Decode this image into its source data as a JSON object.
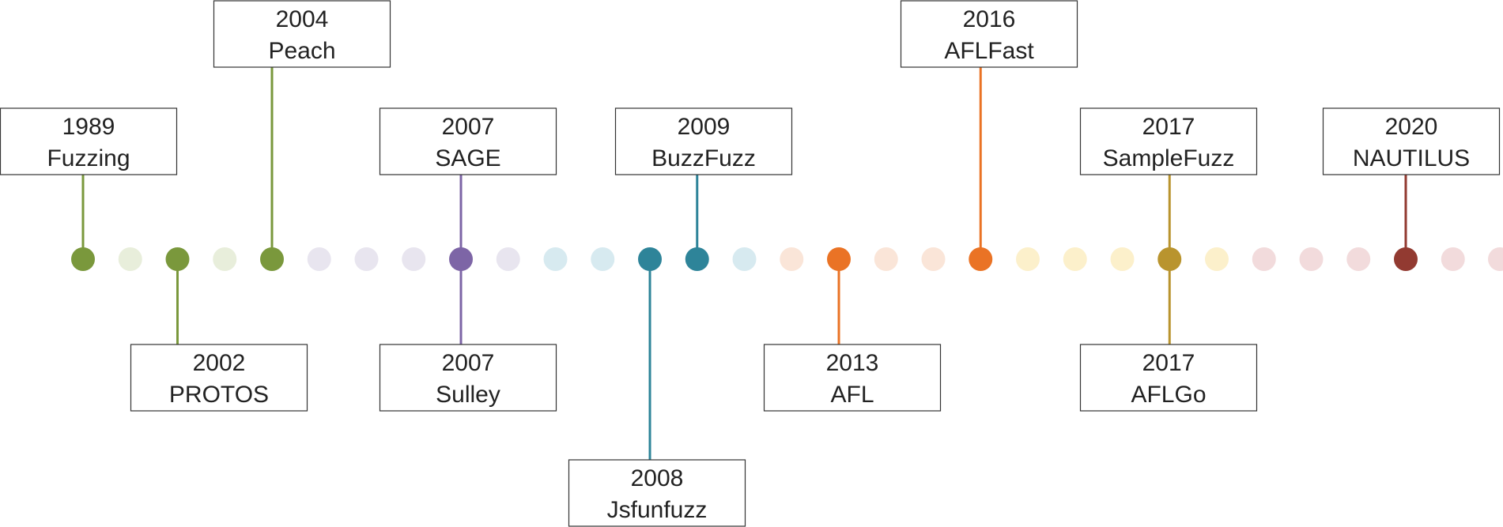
{
  "timeline": {
    "events": [
      {
        "year": "1989",
        "name": "Fuzzing",
        "color": "#7A983C"
      },
      {
        "year": "2002",
        "name": "PROTOS",
        "color": "#7A983C"
      },
      {
        "year": "2004",
        "name": "Peach",
        "color": "#7A983C"
      },
      {
        "year": "2007",
        "name": "SAGE",
        "color": "#7D65A6"
      },
      {
        "year": "2007",
        "name": "Sulley",
        "color": "#7D65A6"
      },
      {
        "year": "2008",
        "name": "Jsfunfuzz",
        "color": "#2E8499"
      },
      {
        "year": "2009",
        "name": "BuzzFuzz",
        "color": "#2E8499"
      },
      {
        "year": "2013",
        "name": "AFL",
        "color": "#EA7325"
      },
      {
        "year": "2016",
        "name": "AFLFast",
        "color": "#EA7325"
      },
      {
        "year": "2017",
        "name": "SampleFuzz",
        "color": "#B9942E"
      },
      {
        "year": "2017",
        "name": "AFLGo",
        "color": "#B9942E"
      },
      {
        "year": "2020",
        "name": "NAUTILUS",
        "color": "#923A31"
      }
    ],
    "faded_dot_colors": {
      "green": "#E8EEDB",
      "purple": "#E8E5EF",
      "teal": "#D7EAF0",
      "orange": "#FAE5D8",
      "yellow": "#FCF0CB",
      "red": "#F2DBDC"
    }
  }
}
